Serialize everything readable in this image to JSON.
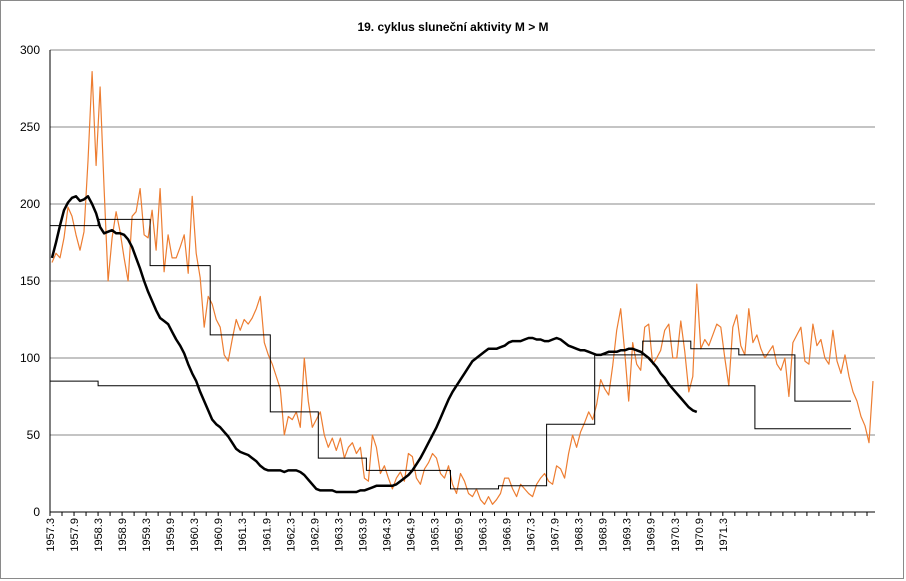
{
  "chart_data": {
    "type": "line",
    "title": "19. cyklus sluneční aktivity  M > M",
    "xlabel": "",
    "ylabel": "",
    "ylim": [
      0,
      300
    ],
    "y_ticks": [
      0,
      50,
      100,
      150,
      200,
      250,
      300
    ],
    "x_tick_labels": [
      "1957.3",
      "1957.9",
      "1958.3",
      "1958.9",
      "1959.3",
      "1959.9",
      "1960.3",
      "1960.9",
      "1961.3",
      "1961.9",
      "1962.3",
      "1962.9",
      "1963.3",
      "1963.9",
      "1964.3",
      "1964.9",
      "1965.3",
      "1965.9",
      "1966.3",
      "1966.9",
      "1967.3",
      "1967.9",
      "1968.3",
      "1968.9",
      "1969.3",
      "1969.9",
      "1970.3",
      "1970.9",
      "1971.3"
    ],
    "grid": "horizontal",
    "colors": {
      "monthly": "#ed7d31",
      "smoothed": "#000000",
      "step": "#000000",
      "gridline": "#888888"
    },
    "series": [
      {
        "key": "monthly",
        "values": [
          162,
          168,
          165,
          178,
          198,
          192,
          180,
          170,
          182,
          228,
          286,
          225,
          276,
          210,
          150,
          178,
          195,
          182,
          165,
          150,
          192,
          195,
          210,
          180,
          178,
          196,
          170,
          210,
          156,
          180,
          165,
          165,
          172,
          180,
          155,
          205,
          168,
          152,
          120,
          140,
          135,
          125,
          120,
          102,
          98,
          112,
          125,
          118,
          125,
          122,
          126,
          132,
          140,
          110,
          102,
          96,
          88,
          80,
          50,
          62,
          60,
          65,
          55,
          100,
          72,
          55,
          60,
          65,
          50,
          42,
          48,
          40,
          48,
          35,
          42,
          45,
          38,
          42,
          22,
          20,
          50,
          42,
          25,
          30,
          22,
          15,
          22,
          26,
          20,
          38,
          36,
          22,
          18,
          28,
          32,
          38,
          35,
          25,
          22,
          30,
          18,
          12,
          25,
          20,
          12,
          10,
          15,
          8,
          5,
          10,
          5,
          8,
          12,
          22,
          22,
          15,
          10,
          18,
          15,
          12,
          10,
          18,
          22,
          25,
          20,
          18,
          30,
          28,
          22,
          38,
          50,
          42,
          52,
          58,
          65,
          60,
          70,
          86,
          80,
          76,
          95,
          118,
          132,
          104,
          72,
          110,
          96,
          92,
          120,
          122,
          96,
          100,
          105,
          118,
          122,
          100,
          100,
          124,
          104,
          78,
          88,
          148,
          106,
          112,
          108,
          115,
          122,
          120,
          100,
          82,
          120,
          128,
          108,
          102,
          132,
          110,
          115,
          106,
          100,
          104,
          108,
          96,
          92,
          100,
          75,
          110,
          115,
          120,
          98,
          96,
          122,
          108,
          112,
          100,
          96,
          118,
          98,
          90,
          102,
          88,
          78,
          72,
          62,
          56,
          45,
          85
        ]
      },
      {
        "key": "smoothed",
        "values": [
          165,
          175,
          186,
          196,
          201,
          204,
          205,
          202,
          203,
          205,
          200,
          194,
          185,
          181,
          182,
          183,
          181,
          181,
          180,
          177,
          172,
          165,
          158,
          150,
          143,
          137,
          131,
          126,
          124,
          122,
          117,
          112,
          108,
          103,
          96,
          90,
          85,
          78,
          72,
          66,
          60,
          57,
          55,
          52,
          49,
          45,
          41,
          39,
          38,
          37,
          35,
          33,
          30,
          28,
          27,
          27,
          27,
          27,
          26,
          27,
          27,
          27,
          26,
          24,
          21,
          18,
          15,
          14,
          14,
          14,
          14,
          13,
          13,
          13,
          13,
          13,
          13,
          14,
          14,
          15,
          16,
          17,
          17,
          17,
          17,
          17,
          18,
          20,
          22,
          24,
          27,
          31,
          35,
          40,
          45,
          50,
          55,
          61,
          67,
          73,
          78,
          82,
          86,
          90,
          94,
          98,
          100,
          102,
          104,
          106,
          106,
          106,
          107,
          108,
          110,
          111,
          111,
          111,
          112,
          113,
          113,
          112,
          112,
          111,
          111,
          112,
          113,
          112,
          110,
          108,
          107,
          106,
          105,
          105,
          104,
          103,
          102,
          102,
          103,
          104,
          104,
          104,
          105,
          105,
          106,
          106,
          105,
          104,
          102,
          100,
          97,
          94,
          90,
          87,
          83,
          80,
          77,
          74,
          71,
          68,
          66,
          65
        ]
      },
      {
        "key": "step_annual",
        "segments": [
          [
            0,
            12,
            186
          ],
          [
            12,
            25,
            190
          ],
          [
            25,
            40,
            160
          ],
          [
            40,
            55,
            115
          ],
          [
            55,
            67,
            65
          ],
          [
            67,
            79,
            35
          ],
          [
            79,
            89,
            27
          ],
          [
            89,
            100,
            27
          ],
          [
            100,
            112,
            15
          ],
          [
            112,
            124,
            17
          ],
          [
            124,
            136,
            57
          ],
          [
            136,
            148,
            102
          ],
          [
            148,
            160,
            111
          ],
          [
            160,
            172,
            106
          ],
          [
            172,
            186,
            102
          ],
          [
            186,
            200,
            72
          ]
        ]
      },
      {
        "key": "step_mean",
        "segments": [
          [
            0,
            12,
            85
          ],
          [
            12,
            176,
            82
          ],
          [
            176,
            200,
            54
          ]
        ]
      }
    ]
  }
}
